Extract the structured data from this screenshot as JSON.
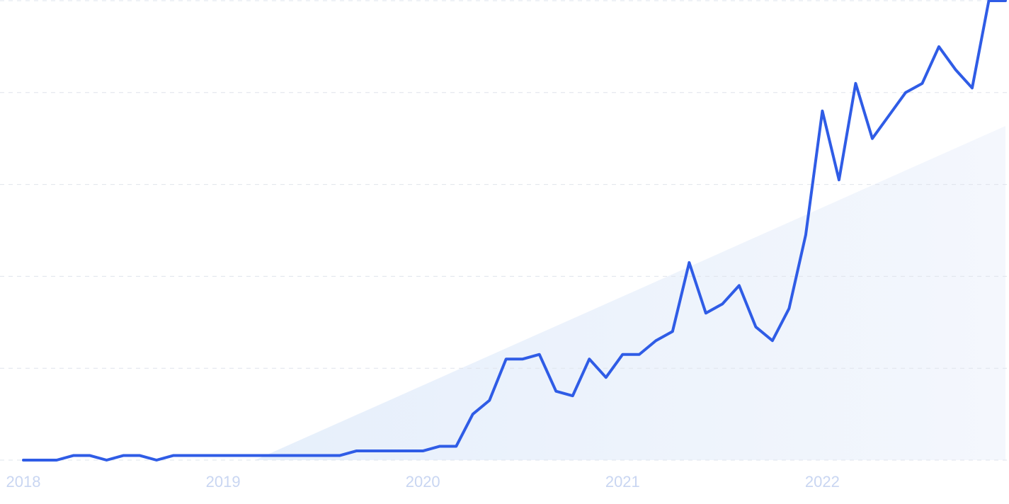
{
  "chart_data": {
    "type": "line",
    "categories": [
      "2018",
      null,
      null,
      null,
      null,
      null,
      null,
      null,
      null,
      null,
      null,
      null,
      "2019",
      null,
      null,
      null,
      null,
      null,
      null,
      null,
      null,
      null,
      null,
      null,
      "2020",
      null,
      null,
      null,
      null,
      null,
      null,
      null,
      null,
      null,
      null,
      null,
      "2021",
      null,
      null,
      null,
      null,
      null,
      null,
      null,
      null,
      null,
      null,
      null,
      "2022",
      null,
      null,
      null,
      null,
      null,
      null,
      null,
      null,
      null,
      null,
      null
    ],
    "series": [
      {
        "color": "#2f5ce6",
        "values": [
          0,
          0,
          0,
          1,
          1,
          0,
          1,
          1,
          0,
          1,
          1,
          1,
          1,
          1,
          1,
          1,
          1,
          1,
          1,
          1,
          2,
          2,
          2,
          2,
          2,
          3,
          3,
          10,
          13,
          22,
          22,
          23,
          15,
          14,
          22,
          18,
          23,
          23,
          26,
          28,
          43,
          32,
          34,
          38,
          29,
          26,
          33,
          49,
          76,
          61,
          82,
          70,
          75,
          80,
          82,
          90,
          85,
          81,
          100,
          100
        ]
      }
    ],
    "ylim": [
      0,
      100
    ],
    "yticks": [
      0,
      20,
      40,
      60,
      80,
      100
    ],
    "grid": true
  }
}
